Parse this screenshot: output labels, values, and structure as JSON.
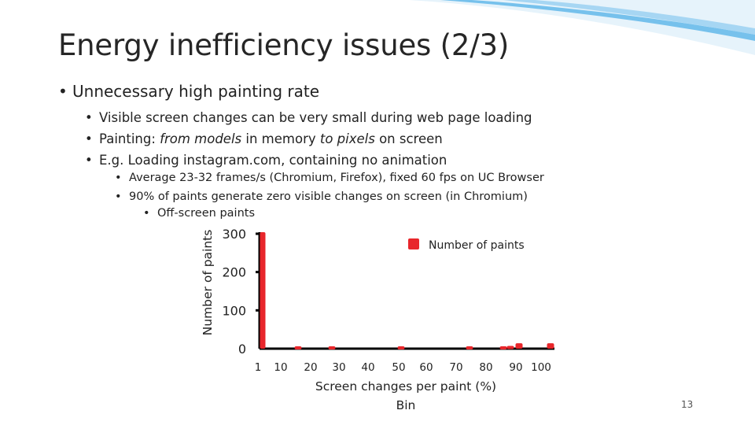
{
  "slide": {
    "title": "Energy inefficiency issues (2/3)",
    "bullets": {
      "l1": "Unnecessary high painting rate",
      "l2_1": "Visible screen changes can be very small during web page loading",
      "l2_2a": "Painting: ",
      "l2_2b": "from models",
      "l2_2c": " in memory ",
      "l2_2d": "to pixels",
      "l2_2e": " on screen",
      "l2_3": "E.g. Loading instagram.com, containing no animation",
      "l3_1": "Average 23-32 frames/s (Chromium, Firefox), fixed 60 fps on UC Browser",
      "l3_2": "90% of paints generate zero visible changes on screen (in Chromium)",
      "l4_1": "Off-screen paints"
    },
    "page_number": "13",
    "bullet_char": "•",
    "colors": {
      "accent": "#e8262b",
      "swoosh": "#5ab4e8"
    }
  },
  "chart_data": {
    "type": "bar",
    "title": "",
    "xlabel": "Screen changes per paint (%)",
    "xlabel2": "Bin",
    "ylabel": "Number of paints",
    "categories": [
      "1",
      "10",
      "20",
      "30",
      "40",
      "50",
      "60",
      "70",
      "80",
      "90",
      "100"
    ],
    "series": [
      {
        "name": "Number of paints",
        "color": "#e8262b",
        "values": [
          300,
          2,
          2,
          0,
          2,
          0,
          2,
          2,
          3,
          10,
          10
        ]
      }
    ],
    "ylim": [
      0,
      300
    ],
    "yticks": [
      0,
      100,
      200,
      300
    ],
    "grid": false,
    "legend": "top-right"
  }
}
